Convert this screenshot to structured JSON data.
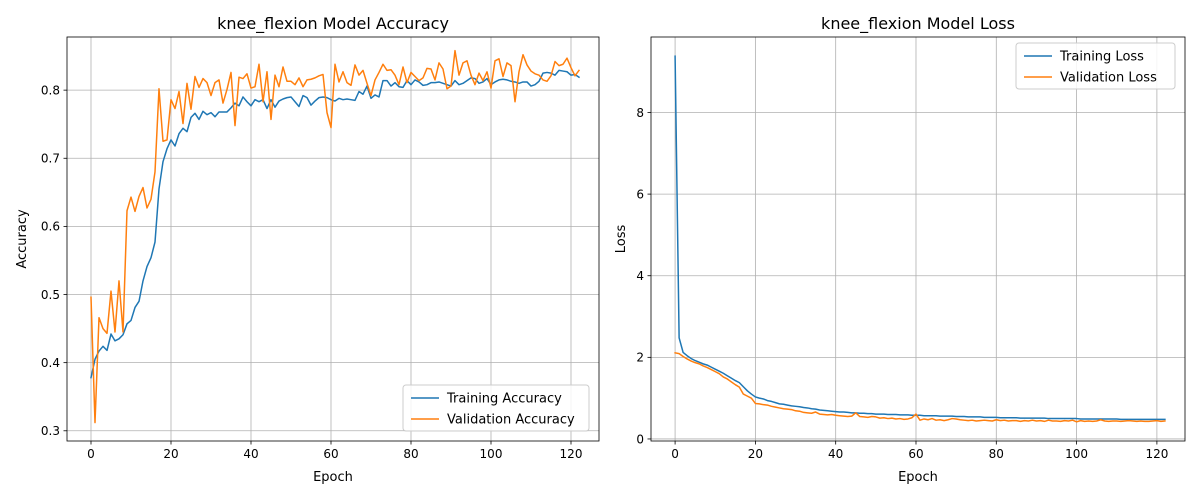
{
  "chart_data": [
    {
      "type": "line",
      "title": "knee_flexion Model Accuracy",
      "xlabel": "Epoch",
      "ylabel": "Accuracy",
      "xlim": [
        -6,
        127
      ],
      "ylim": [
        0.285,
        0.878
      ],
      "x_ticks": [
        0,
        20,
        40,
        60,
        80,
        100,
        120
      ],
      "y_ticks": [
        0.3,
        0.4,
        0.5,
        0.6,
        0.7,
        0.8
      ],
      "grid": true,
      "legend_location": "lower-right",
      "series": [
        {
          "name": "Training Accuracy",
          "color": "#1f77b4",
          "values": [
            0.378,
            0.405,
            0.417,
            0.424,
            0.418,
            0.442,
            0.432,
            0.435,
            0.441,
            0.457,
            0.462,
            0.481,
            0.49,
            0.52,
            0.541,
            0.554,
            0.577,
            0.655,
            0.695,
            0.714,
            0.727,
            0.718,
            0.736,
            0.744,
            0.739,
            0.76,
            0.766,
            0.757,
            0.769,
            0.764,
            0.767,
            0.761,
            0.768,
            0.768,
            0.768,
            0.774,
            0.781,
            0.777,
            0.79,
            0.783,
            0.777,
            0.786,
            0.783,
            0.786,
            0.773,
            0.786,
            0.775,
            0.784,
            0.787,
            0.789,
            0.79,
            0.783,
            0.776,
            0.792,
            0.789,
            0.778,
            0.784,
            0.789,
            0.79,
            0.789,
            0.786,
            0.784,
            0.788,
            0.786,
            0.787,
            0.786,
            0.785,
            0.798,
            0.794,
            0.806,
            0.788,
            0.793,
            0.79,
            0.814,
            0.814,
            0.806,
            0.811,
            0.805,
            0.804,
            0.814,
            0.808,
            0.815,
            0.812,
            0.807,
            0.808,
            0.811,
            0.811,
            0.812,
            0.81,
            0.808,
            0.806,
            0.814,
            0.808,
            0.81,
            0.814,
            0.818,
            0.817,
            0.81,
            0.812,
            0.817,
            0.808,
            0.812,
            0.815,
            0.816,
            0.815,
            0.813,
            0.812,
            0.81,
            0.812,
            0.812,
            0.806,
            0.808,
            0.813,
            0.825,
            0.826,
            0.825,
            0.822,
            0.829,
            0.828,
            0.827,
            0.822,
            0.823,
            0.819
          ]
        },
        {
          "name": "Validation Accuracy",
          "color": "#ff7f0e",
          "values": [
            0.496,
            0.312,
            0.466,
            0.45,
            0.443,
            0.505,
            0.445,
            0.52,
            0.445,
            0.623,
            0.643,
            0.622,
            0.644,
            0.657,
            0.627,
            0.64,
            0.68,
            0.802,
            0.725,
            0.727,
            0.786,
            0.773,
            0.798,
            0.751,
            0.81,
            0.772,
            0.82,
            0.804,
            0.817,
            0.811,
            0.792,
            0.811,
            0.815,
            0.781,
            0.801,
            0.826,
            0.748,
            0.819,
            0.817,
            0.824,
            0.803,
            0.805,
            0.838,
            0.783,
            0.827,
            0.757,
            0.822,
            0.805,
            0.834,
            0.813,
            0.813,
            0.808,
            0.818,
            0.805,
            0.815,
            0.816,
            0.818,
            0.821,
            0.823,
            0.767,
            0.745,
            0.838,
            0.812,
            0.827,
            0.811,
            0.807,
            0.837,
            0.822,
            0.829,
            0.81,
            0.792,
            0.815,
            0.826,
            0.838,
            0.829,
            0.83,
            0.822,
            0.808,
            0.834,
            0.811,
            0.826,
            0.82,
            0.814,
            0.818,
            0.832,
            0.831,
            0.815,
            0.84,
            0.831,
            0.802,
            0.806,
            0.858,
            0.822,
            0.84,
            0.843,
            0.822,
            0.808,
            0.825,
            0.814,
            0.827,
            0.803,
            0.843,
            0.846,
            0.82,
            0.84,
            0.836,
            0.783,
            0.827,
            0.852,
            0.837,
            0.828,
            0.824,
            0.822,
            0.815,
            0.813,
            0.821,
            0.842,
            0.836,
            0.838,
            0.847,
            0.833,
            0.821,
            0.829
          ]
        }
      ]
    },
    {
      "type": "line",
      "title": "knee_flexion Model Loss",
      "xlabel": "Epoch",
      "ylabel": "Loss",
      "xlim": [
        -6,
        127
      ],
      "ylim": [
        -0.05,
        9.85
      ],
      "x_ticks": [
        0,
        20,
        40,
        60,
        80,
        100,
        120
      ],
      "y_ticks": [
        0,
        2,
        4,
        6,
        8
      ],
      "grid": true,
      "legend_location": "upper-right",
      "series": [
        {
          "name": "Training Loss",
          "color": "#1f77b4",
          "values": [
            9.38,
            2.48,
            2.12,
            2.04,
            1.97,
            1.92,
            1.88,
            1.84,
            1.81,
            1.76,
            1.71,
            1.66,
            1.61,
            1.55,
            1.49,
            1.43,
            1.38,
            1.28,
            1.18,
            1.1,
            1.03,
            1.0,
            0.98,
            0.94,
            0.92,
            0.89,
            0.86,
            0.85,
            0.83,
            0.81,
            0.8,
            0.79,
            0.77,
            0.76,
            0.74,
            0.73,
            0.71,
            0.7,
            0.69,
            0.68,
            0.67,
            0.66,
            0.66,
            0.65,
            0.64,
            0.64,
            0.63,
            0.63,
            0.62,
            0.62,
            0.61,
            0.61,
            0.61,
            0.6,
            0.6,
            0.6,
            0.59,
            0.59,
            0.59,
            0.58,
            0.58,
            0.58,
            0.57,
            0.57,
            0.57,
            0.57,
            0.56,
            0.56,
            0.56,
            0.56,
            0.55,
            0.55,
            0.55,
            0.54,
            0.54,
            0.54,
            0.54,
            0.53,
            0.53,
            0.53,
            0.53,
            0.52,
            0.52,
            0.52,
            0.52,
            0.52,
            0.51,
            0.51,
            0.51,
            0.51,
            0.51,
            0.51,
            0.51,
            0.5,
            0.5,
            0.5,
            0.5,
            0.5,
            0.5,
            0.5,
            0.5,
            0.49,
            0.49,
            0.49,
            0.49,
            0.49,
            0.49,
            0.49,
            0.49,
            0.49,
            0.49,
            0.48,
            0.48,
            0.48,
            0.48,
            0.48,
            0.48,
            0.48,
            0.48,
            0.48,
            0.48,
            0.48,
            0.48
          ]
        },
        {
          "name": "Validation Loss",
          "color": "#ff7f0e",
          "values": [
            2.11,
            2.09,
            2.02,
            1.96,
            1.91,
            1.87,
            1.84,
            1.79,
            1.75,
            1.7,
            1.65,
            1.6,
            1.52,
            1.47,
            1.4,
            1.33,
            1.27,
            1.1,
            1.05,
            1.0,
            0.87,
            0.86,
            0.84,
            0.83,
            0.8,
            0.78,
            0.76,
            0.74,
            0.73,
            0.72,
            0.69,
            0.68,
            0.65,
            0.64,
            0.63,
            0.66,
            0.61,
            0.6,
            0.59,
            0.6,
            0.58,
            0.57,
            0.56,
            0.55,
            0.56,
            0.64,
            0.55,
            0.54,
            0.53,
            0.55,
            0.54,
            0.51,
            0.52,
            0.5,
            0.51,
            0.49,
            0.5,
            0.48,
            0.49,
            0.52,
            0.61,
            0.46,
            0.49,
            0.47,
            0.5,
            0.46,
            0.47,
            0.45,
            0.47,
            0.5,
            0.49,
            0.47,
            0.46,
            0.45,
            0.46,
            0.44,
            0.45,
            0.46,
            0.45,
            0.44,
            0.47,
            0.45,
            0.46,
            0.44,
            0.45,
            0.45,
            0.43,
            0.45,
            0.44,
            0.46,
            0.44,
            0.45,
            0.43,
            0.46,
            0.44,
            0.44,
            0.43,
            0.45,
            0.44,
            0.46,
            0.42,
            0.45,
            0.43,
            0.44,
            0.43,
            0.44,
            0.47,
            0.44,
            0.43,
            0.44,
            0.44,
            0.43,
            0.44,
            0.45,
            0.44,
            0.43,
            0.44,
            0.43,
            0.43,
            0.44,
            0.45,
            0.43,
            0.44
          ]
        }
      ]
    }
  ]
}
